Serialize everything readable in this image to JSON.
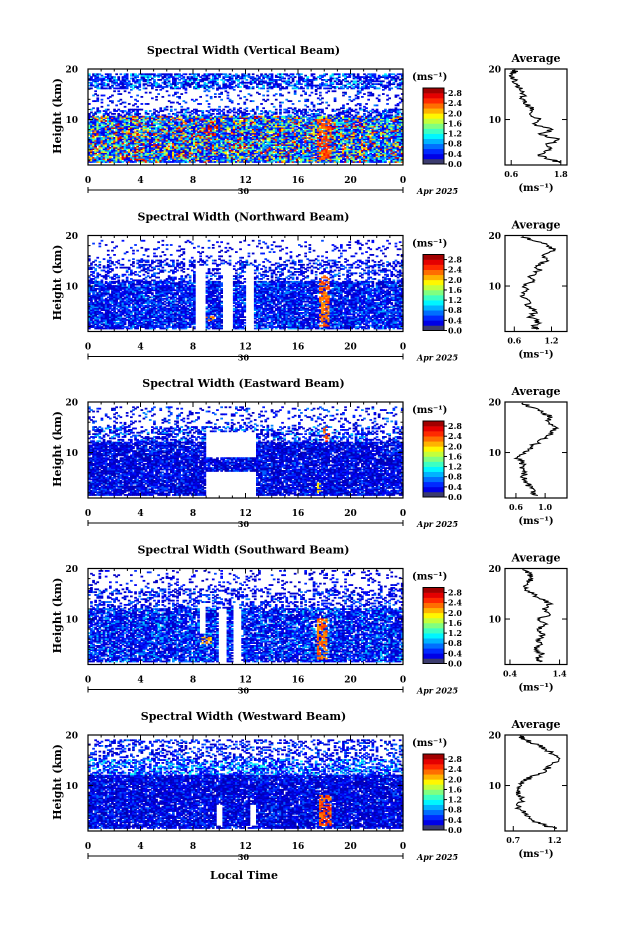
{
  "chart_data": [
    {
      "type": "heatmap",
      "title": "Spectral Width (Vertical Beam)",
      "ylabel": "Height (km)",
      "xticks": [
        "0",
        "4",
        "8",
        "12",
        "16",
        "20",
        "0"
      ],
      "yticks": [
        "10",
        "20"
      ],
      "xlim": [
        0,
        24
      ],
      "ylim": [
        1,
        20
      ],
      "day_label": "30",
      "month_label": "Apr 2025",
      "colorbar": {
        "unit": "(ms⁻¹)",
        "ticks": [
          "2.8",
          "2.4",
          "2.0",
          "1.6",
          "1.2",
          "0.8",
          "0.4",
          "0.0"
        ],
        "range": [
          0,
          3.0
        ]
      },
      "layers": [
        {
          "y": [
            1.5,
            10.5
          ],
          "min": 0.3,
          "max": 2.9,
          "density": 0.93
        },
        {
          "y": [
            10.5,
            12
          ],
          "min": 0.2,
          "max": 1.0,
          "density": 0.45
        },
        {
          "y": [
            12,
            16
          ],
          "min": 0.2,
          "max": 0.8,
          "density": 0.12
        },
        {
          "y": [
            16,
            19
          ],
          "min": 0.2,
          "max": 1.2,
          "density": 0.62
        }
      ],
      "hot": [
        {
          "t": [
            17.5,
            18.6
          ],
          "y": [
            2,
            10
          ],
          "v": 2.6
        }
      ],
      "gaps": [],
      "avg": {
        "title": "Average",
        "xlabel": "(ms⁻¹)",
        "xticks": [
          "0.6",
          "1.8"
        ],
        "xtick_values": [
          0.6,
          1.8
        ],
        "xlim": [
          0.45,
          1.95
        ],
        "yticks": [
          "10",
          "20"
        ],
        "profile": [
          [
            1.5,
            1.75
          ],
          [
            2,
            1.6
          ],
          [
            3,
            1.25
          ],
          [
            4,
            1.55
          ],
          [
            5,
            1.45
          ],
          [
            6,
            1.75
          ],
          [
            7,
            1.3
          ],
          [
            8,
            1.6
          ],
          [
            9,
            1.2
          ],
          [
            10,
            1.3
          ],
          [
            11,
            1.05
          ],
          [
            12,
            1.15
          ],
          [
            13,
            0.95
          ],
          [
            14,
            0.9
          ],
          [
            15,
            0.9
          ],
          [
            16,
            0.8
          ],
          [
            17,
            0.75
          ],
          [
            18,
            0.65
          ],
          [
            19,
            0.62
          ],
          [
            19.8,
            0.7
          ]
        ]
      }
    },
    {
      "type": "heatmap",
      "title": "Spectral Width (Northward Beam)",
      "ylabel": "Height (km)",
      "xticks": [
        "0",
        "4",
        "8",
        "12",
        "16",
        "20",
        "0"
      ],
      "yticks": [
        "10",
        "20"
      ],
      "xlim": [
        0,
        24
      ],
      "ylim": [
        1,
        20
      ],
      "day_label": "30",
      "month_label": "Apr 2025",
      "colorbar": {
        "unit": "(ms⁻¹)",
        "ticks": [
          "2.8",
          "2.4",
          "2.0",
          "1.6",
          "1.2",
          "0.8",
          "0.4",
          "0.0"
        ],
        "range": [
          0,
          3.0
        ]
      },
      "layers": [
        {
          "y": [
            1.5,
            11
          ],
          "min": 0.2,
          "max": 0.9,
          "density": 0.85
        },
        {
          "y": [
            11,
            15
          ],
          "min": 0.2,
          "max": 0.8,
          "density": 0.35
        },
        {
          "y": [
            15,
            19
          ],
          "min": 0.2,
          "max": 0.6,
          "density": 0.1
        }
      ],
      "hot": [
        {
          "t": [
            17.6,
            18.4
          ],
          "y": [
            2,
            12
          ],
          "v": 2.5
        },
        {
          "t": [
            9.0,
            9.6
          ],
          "y": [
            3,
            4
          ],
          "v": 2.4
        }
      ],
      "gaps": [
        {
          "t": [
            8.2,
            9.0
          ],
          "y": [
            1.5,
            14
          ]
        },
        {
          "t": [
            10.2,
            11.0
          ],
          "y": [
            1.5,
            14
          ]
        },
        {
          "t": [
            12.0,
            12.6
          ],
          "y": [
            1.5,
            14
          ]
        }
      ],
      "avg": {
        "title": "Average",
        "xlabel": "(ms⁻¹)",
        "xticks": [
          "0.6",
          "1.2"
        ],
        "xtick_values": [
          0.6,
          1.2
        ],
        "xlim": [
          0.45,
          1.45
        ],
        "yticks": [
          "10",
          "20"
        ],
        "profile": [
          [
            1.5,
            0.95
          ],
          [
            2,
            0.9
          ],
          [
            3,
            1.0
          ],
          [
            4,
            0.85
          ],
          [
            5,
            0.95
          ],
          [
            6,
            0.8
          ],
          [
            7,
            0.85
          ],
          [
            8,
            0.7
          ],
          [
            9,
            0.8
          ],
          [
            10,
            0.75
          ],
          [
            11,
            0.9
          ],
          [
            12,
            0.85
          ],
          [
            13,
            1.0
          ],
          [
            14,
            0.95
          ],
          [
            15,
            1.15
          ],
          [
            16,
            1.05
          ],
          [
            17,
            1.25
          ],
          [
            18,
            1.15
          ],
          [
            19,
            0.9
          ],
          [
            19.8,
            0.75
          ]
        ]
      }
    },
    {
      "type": "heatmap",
      "title": "Spectral Width (Eastward Beam)",
      "ylabel": "Height (km)",
      "xticks": [
        "0",
        "4",
        "8",
        "12",
        "16",
        "20",
        "0"
      ],
      "yticks": [
        "10",
        "20"
      ],
      "xlim": [
        0,
        24
      ],
      "ylim": [
        1,
        20
      ],
      "day_label": "30",
      "month_label": "Apr 2025",
      "colorbar": {
        "unit": "(ms⁻¹)",
        "ticks": [
          "2.8",
          "2.4",
          "2.0",
          "1.6",
          "1.2",
          "0.8",
          "0.4",
          "0.0"
        ],
        "range": [
          0,
          3.0
        ]
      },
      "layers": [
        {
          "y": [
            1.5,
            12
          ],
          "min": 0.15,
          "max": 0.7,
          "density": 0.88
        },
        {
          "y": [
            12,
            15
          ],
          "min": 0.2,
          "max": 1.0,
          "density": 0.45
        },
        {
          "y": [
            15,
            19
          ],
          "min": 0.2,
          "max": 0.8,
          "density": 0.15
        }
      ],
      "hot": [
        {
          "t": [
            18.0,
            18.4
          ],
          "y": [
            12,
            15
          ],
          "v": 2.6
        },
        {
          "t": [
            17.4,
            17.8
          ],
          "y": [
            2,
            4
          ],
          "v": 2.2
        }
      ],
      "gaps": [
        {
          "t": [
            9.0,
            12.8
          ],
          "y": [
            1.5,
            6
          ]
        },
        {
          "t": [
            9.0,
            12.8
          ],
          "y": [
            9,
            14
          ]
        }
      ],
      "avg": {
        "title": "Average",
        "xlabel": "(ms⁻¹)",
        "xticks": [
          "0.6",
          "1.0"
        ],
        "xtick_values": [
          0.6,
          1.0
        ],
        "xlim": [
          0.45,
          1.3
        ],
        "yticks": [
          "10",
          "20"
        ],
        "profile": [
          [
            1.5,
            0.9
          ],
          [
            2,
            0.85
          ],
          [
            3,
            0.8
          ],
          [
            4,
            0.75
          ],
          [
            5,
            0.7
          ],
          [
            6,
            0.72
          ],
          [
            7,
            0.65
          ],
          [
            8,
            0.7
          ],
          [
            9,
            0.62
          ],
          [
            10,
            0.7
          ],
          [
            11,
            0.8
          ],
          [
            12,
            0.9
          ],
          [
            13,
            1.0
          ],
          [
            14,
            1.1
          ],
          [
            15,
            1.15
          ],
          [
            16,
            1.05
          ],
          [
            17,
            1.1
          ],
          [
            18,
            0.95
          ],
          [
            19,
            0.8
          ],
          [
            19.8,
            0.7
          ]
        ]
      }
    },
    {
      "type": "heatmap",
      "title": "Spectral Width (Southward Beam)",
      "ylabel": "Height (km)",
      "xticks": [
        "0",
        "4",
        "8",
        "12",
        "16",
        "20",
        "0"
      ],
      "yticks": [
        "10",
        "20"
      ],
      "xlim": [
        0,
        24
      ],
      "ylim": [
        1,
        20
      ],
      "day_label": "30",
      "month_label": "Apr 2025",
      "colorbar": {
        "unit": "(ms⁻¹)",
        "ticks": [
          "2.8",
          "2.4",
          "2.0",
          "1.6",
          "1.2",
          "0.8",
          "0.4",
          "0.0"
        ],
        "range": [
          0,
          3.0
        ]
      },
      "layers": [
        {
          "y": [
            1.5,
            12
          ],
          "min": 0.2,
          "max": 1.0,
          "density": 0.82
        },
        {
          "y": [
            12,
            16
          ],
          "min": 0.2,
          "max": 0.8,
          "density": 0.35
        },
        {
          "y": [
            16,
            19.5
          ],
          "min": 0.2,
          "max": 0.6,
          "density": 0.12
        }
      ],
      "hot": [
        {
          "t": [
            17.4,
            18.2
          ],
          "y": [
            2,
            10
          ],
          "v": 2.5
        },
        {
          "t": [
            8.6,
            9.4
          ],
          "y": [
            5,
            6.5
          ],
          "v": 2.3
        }
      ],
      "gaps": [
        {
          "t": [
            8.4,
            9.0
          ],
          "y": [
            7,
            13
          ]
        },
        {
          "t": [
            10.0,
            10.6
          ],
          "y": [
            1.5,
            12
          ]
        },
        {
          "t": [
            11.0,
            11.6
          ],
          "y": [
            1.5,
            12
          ]
        }
      ],
      "avg": {
        "title": "Average",
        "xlabel": "(ms⁻¹)",
        "xticks": [
          "0.4",
          "1.4"
        ],
        "xtick_values": [
          0.4,
          1.4
        ],
        "xlim": [
          0.3,
          1.55
        ],
        "yticks": [
          "10",
          "20"
        ],
        "profile": [
          [
            1.5,
            1.0
          ],
          [
            2,
            0.95
          ],
          [
            3,
            1.05
          ],
          [
            4,
            0.9
          ],
          [
            5,
            1.05
          ],
          [
            6,
            0.95
          ],
          [
            7,
            1.1
          ],
          [
            8,
            0.95
          ],
          [
            9,
            1.15
          ],
          [
            10,
            1.0
          ],
          [
            11,
            1.2
          ],
          [
            12,
            1.05
          ],
          [
            13,
            1.25
          ],
          [
            14,
            1.0
          ],
          [
            15,
            0.85
          ],
          [
            16,
            0.7
          ],
          [
            17,
            0.75
          ],
          [
            18,
            0.85
          ],
          [
            19,
            0.8
          ],
          [
            19.8,
            0.65
          ]
        ]
      }
    },
    {
      "type": "heatmap",
      "title": "Spectral Width (Westward Beam)",
      "ylabel": "Height (km)",
      "xticks": [
        "0",
        "4",
        "8",
        "12",
        "16",
        "20",
        "0"
      ],
      "yticks": [
        "10",
        "20"
      ],
      "xlim": [
        0,
        24
      ],
      "ylim": [
        1,
        20
      ],
      "day_label": "30",
      "month_label": "Apr 2025",
      "colorbar": {
        "unit": "(ms⁻¹)",
        "ticks": [
          "2.8",
          "2.4",
          "2.0",
          "1.6",
          "1.2",
          "0.8",
          "0.4",
          "0.0"
        ],
        "range": [
          0,
          3.0
        ]
      },
      "layers": [
        {
          "y": [
            1.5,
            12
          ],
          "min": 0.15,
          "max": 0.7,
          "density": 0.9
        },
        {
          "y": [
            12,
            15
          ],
          "min": 0.3,
          "max": 1.2,
          "density": 0.55
        },
        {
          "y": [
            15,
            19
          ],
          "min": 0.2,
          "max": 0.8,
          "density": 0.3
        }
      ],
      "hot": [
        {
          "t": [
            17.6,
            18.6
          ],
          "y": [
            2,
            8
          ],
          "v": 2.6
        }
      ],
      "gaps": [
        {
          "t": [
            9.8,
            10.3
          ],
          "y": [
            2,
            6
          ]
        },
        {
          "t": [
            12.3,
            12.8
          ],
          "y": [
            2,
            6
          ]
        }
      ],
      "avg": {
        "title": "Average",
        "xlabel": "(ms⁻¹)",
        "xticks": [
          "0.7",
          "1.2"
        ],
        "xtick_values": [
          0.7,
          1.2
        ],
        "xlim": [
          0.6,
          1.35
        ],
        "yticks": [
          "10",
          "20"
        ],
        "profile": [
          [
            1.5,
            1.2
          ],
          [
            2,
            1.1
          ],
          [
            3,
            0.95
          ],
          [
            4,
            0.85
          ],
          [
            5,
            0.8
          ],
          [
            6,
            0.75
          ],
          [
            7,
            0.8
          ],
          [
            8,
            0.78
          ],
          [
            9,
            0.75
          ],
          [
            10,
            0.8
          ],
          [
            11,
            0.85
          ],
          [
            12,
            0.95
          ],
          [
            13,
            1.1
          ],
          [
            14,
            1.15
          ],
          [
            15,
            1.25
          ],
          [
            16,
            1.2
          ],
          [
            17,
            1.1
          ],
          [
            18,
            1.0
          ],
          [
            19,
            0.85
          ],
          [
            19.8,
            0.78
          ]
        ]
      }
    }
  ],
  "xlabel": "Local Time"
}
